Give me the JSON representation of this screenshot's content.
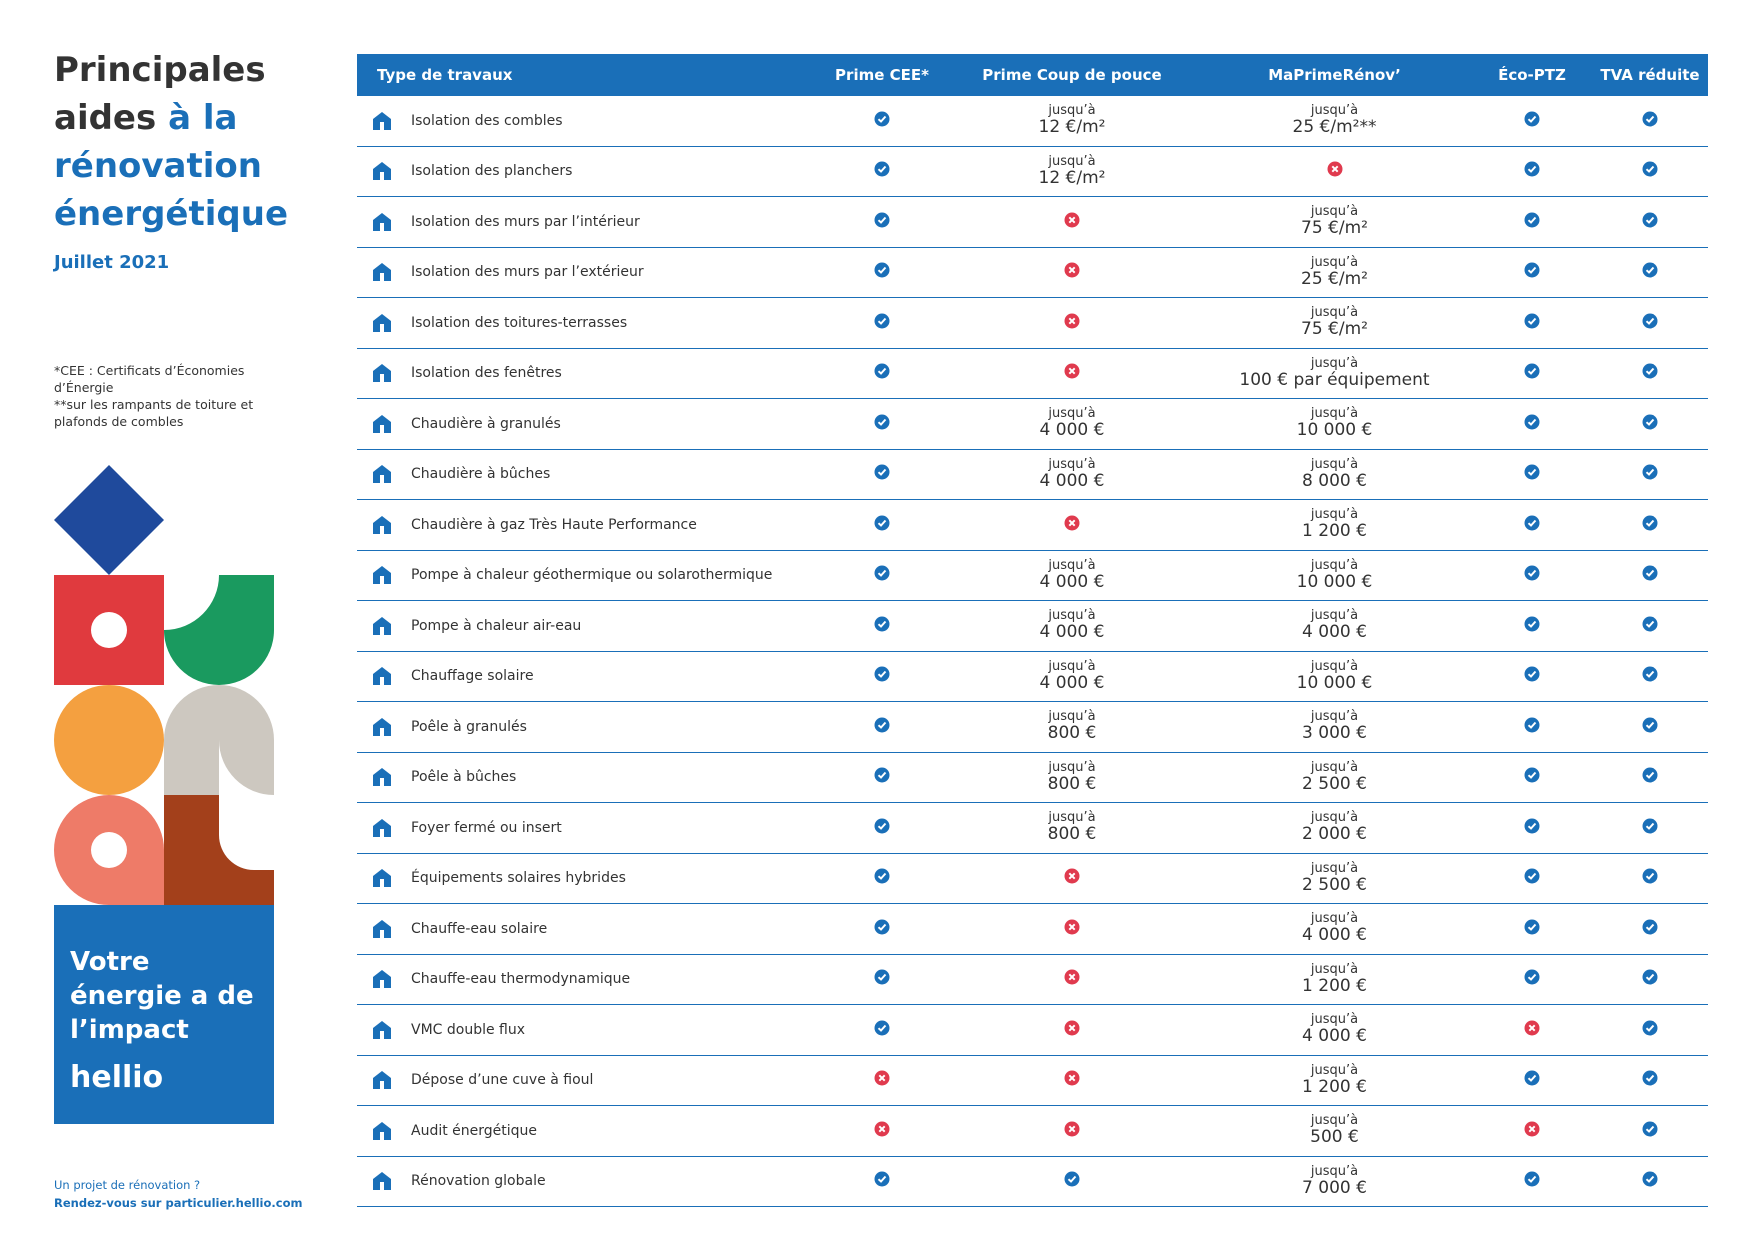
{
  "sidebar": {
    "title_dark": "Principales aides",
    "title_blue": "à la rénovation énergétique",
    "date": "Juillet 2021",
    "notes": [
      "*CEE : Certificats d’Économies d’Énergie",
      "**sur les rampants de toiture et plafonds de combles"
    ],
    "slogan": "Votre énergie a de l’impact",
    "brand": "hellio",
    "footer": [
      "Un projet de rénovation ?",
      "Rendez-vous sur particulier.hellio.com"
    ]
  },
  "table": {
    "headers": [
      "Type de travaux",
      "Prime CEE*",
      "Prime Coup de pouce",
      "MaPrimeRénov’",
      "Éco-PTZ",
      "TVA réduite"
    ],
    "rows": [
      [
        "Isolation des combles",
        true,
        {
          "prefix": "jusqu’à",
          "amount": "12 €/m²"
        },
        {
          "prefix": "jusqu’à",
          "amount": "25 €/m²**"
        },
        true,
        true
      ],
      [
        "Isolation des planchers",
        true,
        {
          "prefix": "jusqu’à",
          "amount": "12 €/m²"
        },
        false,
        true,
        true
      ],
      [
        "Isolation des murs par l’intérieur",
        true,
        false,
        {
          "prefix": "jusqu’à",
          "amount": "75 €/m²"
        },
        true,
        true
      ],
      [
        "Isolation des murs par l’extérieur",
        true,
        false,
        {
          "prefix": "jusqu’à",
          "amount": "25 €/m²"
        },
        true,
        true
      ],
      [
        "Isolation des toitures-terrasses",
        true,
        false,
        {
          "prefix": "jusqu’à",
          "amount": "75 €/m²"
        },
        true,
        true
      ],
      [
        "Isolation des fenêtres",
        true,
        false,
        {
          "prefix": "jusqu’à",
          "amount": "100 € par équipement"
        },
        true,
        true
      ],
      [
        "Chaudière à granulés",
        true,
        {
          "prefix": "jusqu’à",
          "amount": "4 000 €"
        },
        {
          "prefix": "jusqu’à",
          "amount": "10 000 €"
        },
        true,
        true
      ],
      [
        "Chaudière à bûches",
        true,
        {
          "prefix": "jusqu’à",
          "amount": "4 000 €"
        },
        {
          "prefix": "jusqu’à",
          "amount": "8 000 €"
        },
        true,
        true
      ],
      [
        "Chaudière à gaz Très Haute Performance",
        true,
        false,
        {
          "prefix": "jusqu’à",
          "amount": "1 200 €"
        },
        true,
        true
      ],
      [
        "Pompe à chaleur géothermique ou solarothermique",
        true,
        {
          "prefix": "jusqu’à",
          "amount": "4 000 €"
        },
        {
          "prefix": "jusqu’à",
          "amount": "10 000 €"
        },
        true,
        true
      ],
      [
        "Pompe à chaleur air-eau",
        true,
        {
          "prefix": "jusqu’à",
          "amount": "4 000 €"
        },
        {
          "prefix": "jusqu’à",
          "amount": "4 000 €"
        },
        true,
        true
      ],
      [
        "Chauffage solaire",
        true,
        {
          "prefix": "jusqu’à",
          "amount": "4 000 €"
        },
        {
          "prefix": "jusqu’à",
          "amount": "10 000 €"
        },
        true,
        true
      ],
      [
        "Poêle à granulés",
        true,
        {
          "prefix": "jusqu’à",
          "amount": "800 €"
        },
        {
          "prefix": "jusqu’à",
          "amount": "3 000 €"
        },
        true,
        true
      ],
      [
        "Poêle à bûches",
        true,
        {
          "prefix": "jusqu’à",
          "amount": "800 €"
        },
        {
          "prefix": "jusqu’à",
          "amount": "2 500 €"
        },
        true,
        true
      ],
      [
        "Foyer fermé ou insert",
        true,
        {
          "prefix": "jusqu’à",
          "amount": "800 €"
        },
        {
          "prefix": "jusqu’à",
          "amount": "2 000 €"
        },
        true,
        true
      ],
      [
        "Équipements solaires hybrides",
        true,
        false,
        {
          "prefix": "jusqu’à",
          "amount": "2 500 €"
        },
        true,
        true
      ],
      [
        "Chauffe-eau solaire",
        true,
        false,
        {
          "prefix": "jusqu’à",
          "amount": "4 000 €"
        },
        true,
        true
      ],
      [
        "Chauffe-eau thermodynamique",
        true,
        false,
        {
          "prefix": "jusqu’à",
          "amount": "1 200 €"
        },
        true,
        true
      ],
      [
        "VMC double flux",
        true,
        false,
        {
          "prefix": "jusqu’à",
          "amount": "4 000 €"
        },
        false,
        true
      ],
      [
        "Dépose d’une cuve à fioul",
        false,
        false,
        {
          "prefix": "jusqu’à",
          "amount": "1 200 €"
        },
        true,
        true
      ],
      [
        "Audit énergétique",
        false,
        false,
        {
          "prefix": "jusqu’à",
          "amount": "500 €"
        },
        false,
        true
      ],
      [
        "Rénovation globale",
        true,
        true,
        {
          "prefix": "jusqu’à",
          "amount": "7 000 €"
        },
        true,
        true
      ]
    ]
  }
}
